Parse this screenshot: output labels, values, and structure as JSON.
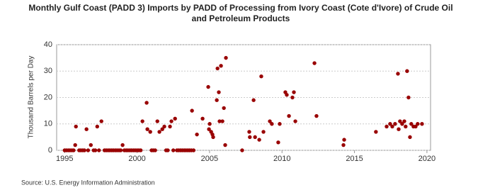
{
  "chart_data": {
    "type": "scatter",
    "title": "Monthly Gulf Coast (PADD 3) Imports by PADD of Processing from Ivory Coast (Cote d'Ivore) of Crude Oil and Petroleum Products",
    "y_label": "Thousand Barrels per Day",
    "source": "Source: U.S. Energy Information Administration",
    "color": "#990000",
    "grid": true,
    "xlim": [
      1994.45,
      2020.25
    ],
    "xticks": [
      1995,
      2000,
      2005,
      2010,
      2015,
      2020
    ],
    "ylim": [
      0,
      40
    ],
    "yticks": [
      0,
      10,
      20,
      30,
      40
    ],
    "x": [
      1995.0,
      1995.12,
      1995.25,
      1995.37,
      1995.5,
      1995.62,
      1996.0,
      1996.12,
      1996.25,
      1996.37,
      1996.62,
      1997.0,
      1997.12,
      1997.37,
      1997.75,
      1997.87,
      1998.0,
      1998.12,
      1998.25,
      1998.37,
      1998.5,
      1998.62,
      1998.75,
      1998.87,
      1999.12,
      1999.25,
      1999.37,
      1999.5,
      1999.62,
      1999.75,
      1999.87,
      2000.0,
      2000.12,
      2000.25,
      2001.0,
      2001.12,
      2001.25,
      2002.0,
      2002.12,
      2002.5,
      2002.75,
      2002.87,
      2003.0,
      2003.12,
      2003.25,
      2003.37,
      2003.5,
      2003.62,
      2003.75,
      2003.9,
      1995.78,
      1995.73,
      1996.51,
      1996.81,
      1997.25,
      1997.54,
      1999.0,
      2000.37,
      2000.66,
      2000.71,
      2000.91,
      2001.4,
      2001.54,
      2001.74,
      2001.88,
      2002.27,
      2002.37,
      2002.62,
      2003.79,
      2004.13,
      2004.52,
      2004.91,
      2005.01,
      2004.96,
      2005.11,
      2005.25,
      2005.2,
      2005.5,
      2005.55,
      2005.64,
      2005.79,
      2005.69,
      2005.89,
      2005.99,
      2006.13,
      2006.08,
      2007.25,
      2007.74,
      2007.78,
      2008.04,
      2008.14,
      2008.43,
      2008.57,
      2008.72,
      2009.16,
      2009.3,
      2009.74,
      2009.84,
      2010.23,
      2010.33,
      2010.48,
      2010.72,
      2010.82,
      2010.92,
      2012.24,
      2012.38,
      2014.24,
      2014.29,
      2016.48,
      2017.22,
      2017.46,
      2017.61,
      2017.8,
      2018.0,
      2018.05,
      2018.14,
      2018.29,
      2018.44,
      2018.53,
      2018.63,
      2018.73,
      2018.83,
      2018.92,
      2019.07,
      2019.22,
      2019.36,
      2019.66
    ],
    "values": [
      0,
      0,
      0,
      0,
      0,
      0,
      0,
      0,
      0,
      0,
      0,
      0,
      0,
      0,
      0,
      0,
      0,
      0,
      0,
      0,
      0,
      0,
      0,
      0,
      0,
      0,
      0,
      0,
      0,
      0,
      0,
      0,
      0,
      0,
      0,
      0,
      0,
      0,
      0,
      0,
      0,
      0,
      0,
      0,
      0,
      0,
      0,
      0,
      0,
      0,
      9,
      2,
      8,
      2,
      9,
      11,
      2,
      11,
      18,
      8,
      7,
      11,
      7,
      8,
      9,
      9,
      11,
      12,
      15,
      6,
      12,
      24,
      10,
      8,
      7,
      5,
      6,
      19,
      31,
      22,
      32,
      11,
      11,
      16,
      35,
      2,
      0,
      7,
      5,
      19,
      5,
      4,
      28,
      7,
      11,
      10,
      3,
      10,
      22,
      21,
      13,
      20,
      22,
      11,
      33,
      13,
      2,
      4,
      7,
      9,
      10,
      9,
      10,
      29,
      8,
      11,
      10,
      11,
      9,
      30,
      20,
      5,
      10,
      9,
      9,
      10,
      10
    ]
  }
}
